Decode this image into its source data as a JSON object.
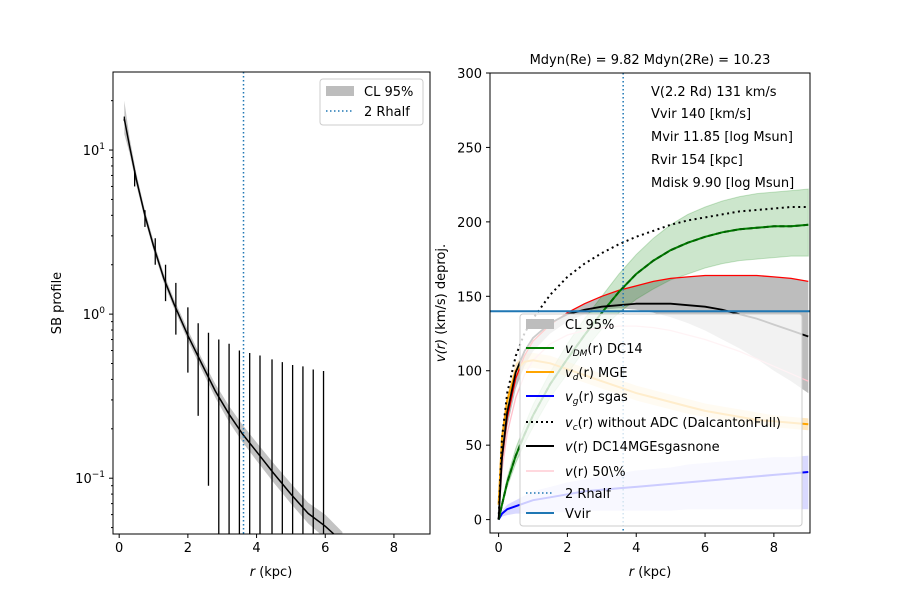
{
  "chart_data": [
    {
      "type": "line",
      "panel": "left",
      "title": "",
      "xlabel_var": "r",
      "xlabel_unit": " (kpc)",
      "ylabel": "SB profile",
      "yscale": "log",
      "xlim": [
        -0.18,
        9.05
      ],
      "ylim": [
        0.0457,
        29.9
      ],
      "xticks": [
        0,
        2,
        4,
        6,
        8
      ],
      "xtick_labels": [
        "0",
        "2",
        "4",
        "6",
        "8"
      ],
      "yticks": [
        0.1,
        1,
        10
      ],
      "ytick_labels": [
        {
          "base": "10",
          "exp": "−1"
        },
        {
          "base": "10",
          "exp": "0"
        },
        {
          "base": "10",
          "exp": "1"
        }
      ],
      "grid": false,
      "legend": {
        "placement": "upper-right",
        "entries": [
          {
            "label": "CL 95%",
            "kind": "patch",
            "color": "#bdbdbd"
          },
          {
            "label": "2 Rhalf",
            "kind": "dotted",
            "color": "#1f77b4"
          }
        ]
      },
      "vline_2rhalf": 3.62,
      "model_curve": {
        "color": "#000000",
        "x": [
          0.15,
          0.3,
          0.5,
          0.75,
          1.0,
          1.3,
          1.6,
          2.0,
          2.4,
          2.8,
          3.2,
          3.6,
          4.0,
          4.5,
          5.0,
          5.5,
          6.0,
          6.25
        ],
        "y": [
          15.5,
          10.6,
          6.6,
          4.0,
          2.6,
          1.65,
          1.15,
          0.74,
          0.5,
          0.34,
          0.245,
          0.185,
          0.145,
          0.107,
          0.08,
          0.061,
          0.051,
          0.0457
        ]
      },
      "cl95_band": {
        "color": "#bdbdbd",
        "x": [
          0.15,
          0.3,
          0.5,
          0.75,
          1.0,
          1.3,
          1.6,
          2.0,
          2.4,
          2.8,
          3.2,
          3.6,
          4.0,
          4.5,
          5.0,
          5.5,
          6.0,
          6.5
        ],
        "lower": [
          12.5,
          9.6,
          6.1,
          3.75,
          2.45,
          1.55,
          1.08,
          0.69,
          0.46,
          0.31,
          0.22,
          0.165,
          0.128,
          0.094,
          0.07,
          0.053,
          0.043,
          0.037
        ],
        "upper": [
          20.0,
          12.0,
          7.2,
          4.3,
          2.8,
          1.76,
          1.23,
          0.8,
          0.54,
          0.375,
          0.275,
          0.21,
          0.165,
          0.123,
          0.093,
          0.071,
          0.06,
          0.047
        ]
      },
      "data_points": {
        "color": "#000000",
        "x": [
          0.15,
          0.45,
          0.75,
          1.05,
          1.35,
          1.65,
          2.0,
          2.3,
          2.6,
          2.9,
          3.2,
          3.5,
          3.8,
          4.1,
          4.45,
          4.75,
          5.05,
          5.35,
          5.65,
          5.95
        ],
        "y": [
          15.5,
          7.0,
          3.9,
          2.4,
          1.6,
          1.12,
          0.72,
          0.5,
          0.36,
          0.27,
          0.22,
          0.18,
          0.15,
          0.125,
          0.105,
          0.088,
          0.075,
          0.063,
          0.054,
          0.047
        ],
        "err_low": [
          15.0,
          6.0,
          3.4,
          2.0,
          1.2,
          0.75,
          0.44,
          0.24,
          0.09,
          0.03,
          0.03,
          0.03,
          0.03,
          0.03,
          0.03,
          0.03,
          0.03,
          0.03,
          0.03,
          0.03
        ],
        "err_high": [
          16.0,
          7.5,
          4.3,
          2.9,
          2.0,
          1.55,
          1.1,
          0.88,
          0.77,
          0.7,
          0.66,
          0.6,
          0.58,
          0.56,
          0.53,
          0.51,
          0.49,
          0.48,
          0.46,
          0.45
        ]
      }
    },
    {
      "type": "line",
      "panel": "right",
      "title": "Mdyn(Re) = 9.82  Mdyn(2Re) = 10.23",
      "xlabel_var": "r",
      "xlabel_unit": " (kpc)",
      "ylabel_var": "v(r)",
      "ylabel_unit": " (km/s) deproj.",
      "xlim": [
        -0.25,
        9.05
      ],
      "ylim": [
        -9,
        300
      ],
      "xticks": [
        0,
        2,
        4,
        6,
        8
      ],
      "xtick_labels": [
        "0",
        "2",
        "4",
        "6",
        "8"
      ],
      "yticks": [
        0,
        50,
        100,
        150,
        200,
        250,
        300
      ],
      "ytick_labels": [
        "0",
        "50",
        "100",
        "150",
        "200",
        "250",
        "300"
      ],
      "grid": false,
      "annotations": [
        "V(2.2 Rd) 131 km/s",
        "Vvir 140 [km/s]",
        "Mvir 11.85 [log Msun]",
        "Rvir 154 [kpc]",
        "Mdisk 9.90 [log Msun]"
      ],
      "vline_2rhalf": 3.62,
      "hline_vvir": 140,
      "legend": {
        "placement": "lower-center",
        "entries": [
          {
            "label": "CL 95%",
            "kind": "patch",
            "color": "#bdbdbd"
          },
          {
            "label_math": "v",
            "label_sub": "DM",
            "label_rest": "(r) DC14",
            "kind": "line",
            "color": "#008000"
          },
          {
            "label_math": "v",
            "label_sub": "d",
            "label_rest": "(r) MGE",
            "kind": "line",
            "color": "#ffa500"
          },
          {
            "label_math": "v",
            "label_sub": "g",
            "label_rest": "(r) sgas",
            "kind": "line",
            "color": "#0000ff"
          },
          {
            "label_math": "v",
            "label_sub": "c",
            "label_rest": "(r) without ADC (DalcantonFull)",
            "kind": "dotted",
            "color": "#000000"
          },
          {
            "label_math": "v",
            "label_sub": "",
            "label_rest": "(r) DC14MGEsgasnone",
            "kind": "line",
            "color": "#000000"
          },
          {
            "label_math": "v",
            "label_sub": "",
            "label_rest": "(r) 50\\%",
            "kind": "line",
            "color": "#ffc0cb"
          },
          {
            "label": "2 Rhalf",
            "kind": "dotted",
            "color": "#1f77b4"
          },
          {
            "label": "Vvir",
            "kind": "line",
            "color": "#1f77b4"
          }
        ]
      },
      "x": [
        0.0,
        0.1,
        0.25,
        0.5,
        0.75,
        1.0,
        1.5,
        2.0,
        2.5,
        3.0,
        3.5,
        4.0,
        4.5,
        5.0,
        5.5,
        6.0,
        6.5,
        7.0,
        7.5,
        8.0,
        8.5,
        9.0
      ],
      "series": [
        {
          "name": "total_cl95_lower",
          "color": "#bdbdbd",
          "values": [
            0,
            35,
            62,
            88,
            103,
            113,
            125,
            133,
            138,
            141,
            142,
            141,
            139,
            136,
            132,
            127,
            121,
            115,
            108,
            100,
            93,
            85
          ]
        },
        {
          "name": "total_cl95_upper",
          "color": "#ff0000",
          "values": [
            0,
            40,
            68,
            95,
            110,
            120,
            131,
            139,
            145,
            150,
            154,
            157,
            160,
            162,
            163,
            164,
            164,
            164,
            164,
            163,
            162,
            160
          ]
        },
        {
          "name": "v(r) DC14MGEsgasnone",
          "color": "#000000",
          "values": [
            0,
            42,
            72,
            99,
            113,
            122,
            132,
            138,
            141,
            143,
            144,
            145,
            145,
            145,
            144,
            143,
            141,
            138,
            135,
            131,
            127,
            123
          ]
        },
        {
          "name": "v(r) 50%",
          "color": "#ffc0cb",
          "values": [
            0,
            33,
            58,
            82,
            97,
            107,
            118,
            124,
            127,
            129,
            130,
            130,
            129,
            127,
            124,
            121,
            117,
            113,
            108,
            103,
            98,
            93
          ]
        },
        {
          "name": "vDM(r) DC14",
          "color": "#008000",
          "values": [
            0,
            10,
            25,
            43,
            57,
            70,
            91,
            108,
            124,
            139,
            153,
            165,
            174,
            181,
            186,
            190,
            193,
            195,
            196,
            197,
            197,
            198
          ]
        },
        {
          "name": "vDM_cl95_lower",
          "color": "#008000",
          "values": [
            0,
            9,
            22,
            38,
            51,
            62,
            82,
            98,
            114,
            128,
            139,
            148,
            155,
            161,
            165,
            169,
            172,
            174,
            175,
            176,
            177,
            177
          ]
        },
        {
          "name": "vDM_cl95_upper",
          "color": "#008000",
          "values": [
            0,
            11,
            28,
            48,
            63,
            77,
            99,
            118,
            135,
            150,
            165,
            178,
            189,
            198,
            205,
            210,
            214,
            217,
            219,
            220,
            221,
            222
          ]
        },
        {
          "name": "vd(r) MGE",
          "color": "#ffa500",
          "values": [
            10,
            55,
            80,
            100,
            106,
            107,
            105,
            101,
            97,
            93,
            89,
            85,
            82,
            79,
            76,
            73,
            71,
            69,
            67,
            66,
            65,
            64
          ]
        },
        {
          "name": "vd_cl95_lower",
          "color": "#ffa500",
          "values": [
            9,
            52,
            76,
            95,
            101,
            102,
            100,
            96,
            92,
            88,
            84,
            80,
            77,
            74,
            71,
            69,
            67,
            65,
            64,
            62,
            61,
            60
          ]
        },
        {
          "name": "vd_cl95_upper",
          "color": "#ffa500",
          "values": [
            11,
            58,
            84,
            105,
            111,
            112,
            110,
            106,
            102,
            98,
            94,
            90,
            87,
            84,
            81,
            78,
            76,
            74,
            72,
            70,
            69,
            68
          ]
        },
        {
          "name": "vg(r) sgas",
          "color": "#0000ff",
          "values": [
            0,
            4,
            7,
            9,
            11,
            13,
            15,
            17,
            19,
            20,
            21,
            22,
            23,
            24,
            25,
            26,
            27,
            28,
            29,
            30,
            31,
            32
          ]
        },
        {
          "name": "vg_cl95_lower",
          "color": "#0000ff",
          "values": [
            0,
            2,
            3,
            4,
            4,
            5,
            5,
            5,
            6,
            6,
            6,
            6,
            6,
            6,
            7,
            7,
            7,
            7,
            7,
            7,
            7,
            7
          ]
        },
        {
          "name": "vg_cl95_upper",
          "color": "#0000ff",
          "values": [
            0,
            6,
            10,
            13,
            16,
            19,
            22,
            25,
            27,
            29,
            31,
            33,
            34,
            35,
            37,
            38,
            39,
            40,
            41,
            42,
            42,
            43
          ]
        },
        {
          "name": "vc(r) without ADC (DalcantonFull)",
          "color": "#000000",
          "values": [
            0,
            55,
            85,
            110,
            125,
            135,
            151,
            163,
            172,
            179,
            185,
            190,
            194,
            198,
            201,
            203,
            205,
            207,
            208,
            209,
            210,
            210
          ]
        }
      ]
    }
  ]
}
